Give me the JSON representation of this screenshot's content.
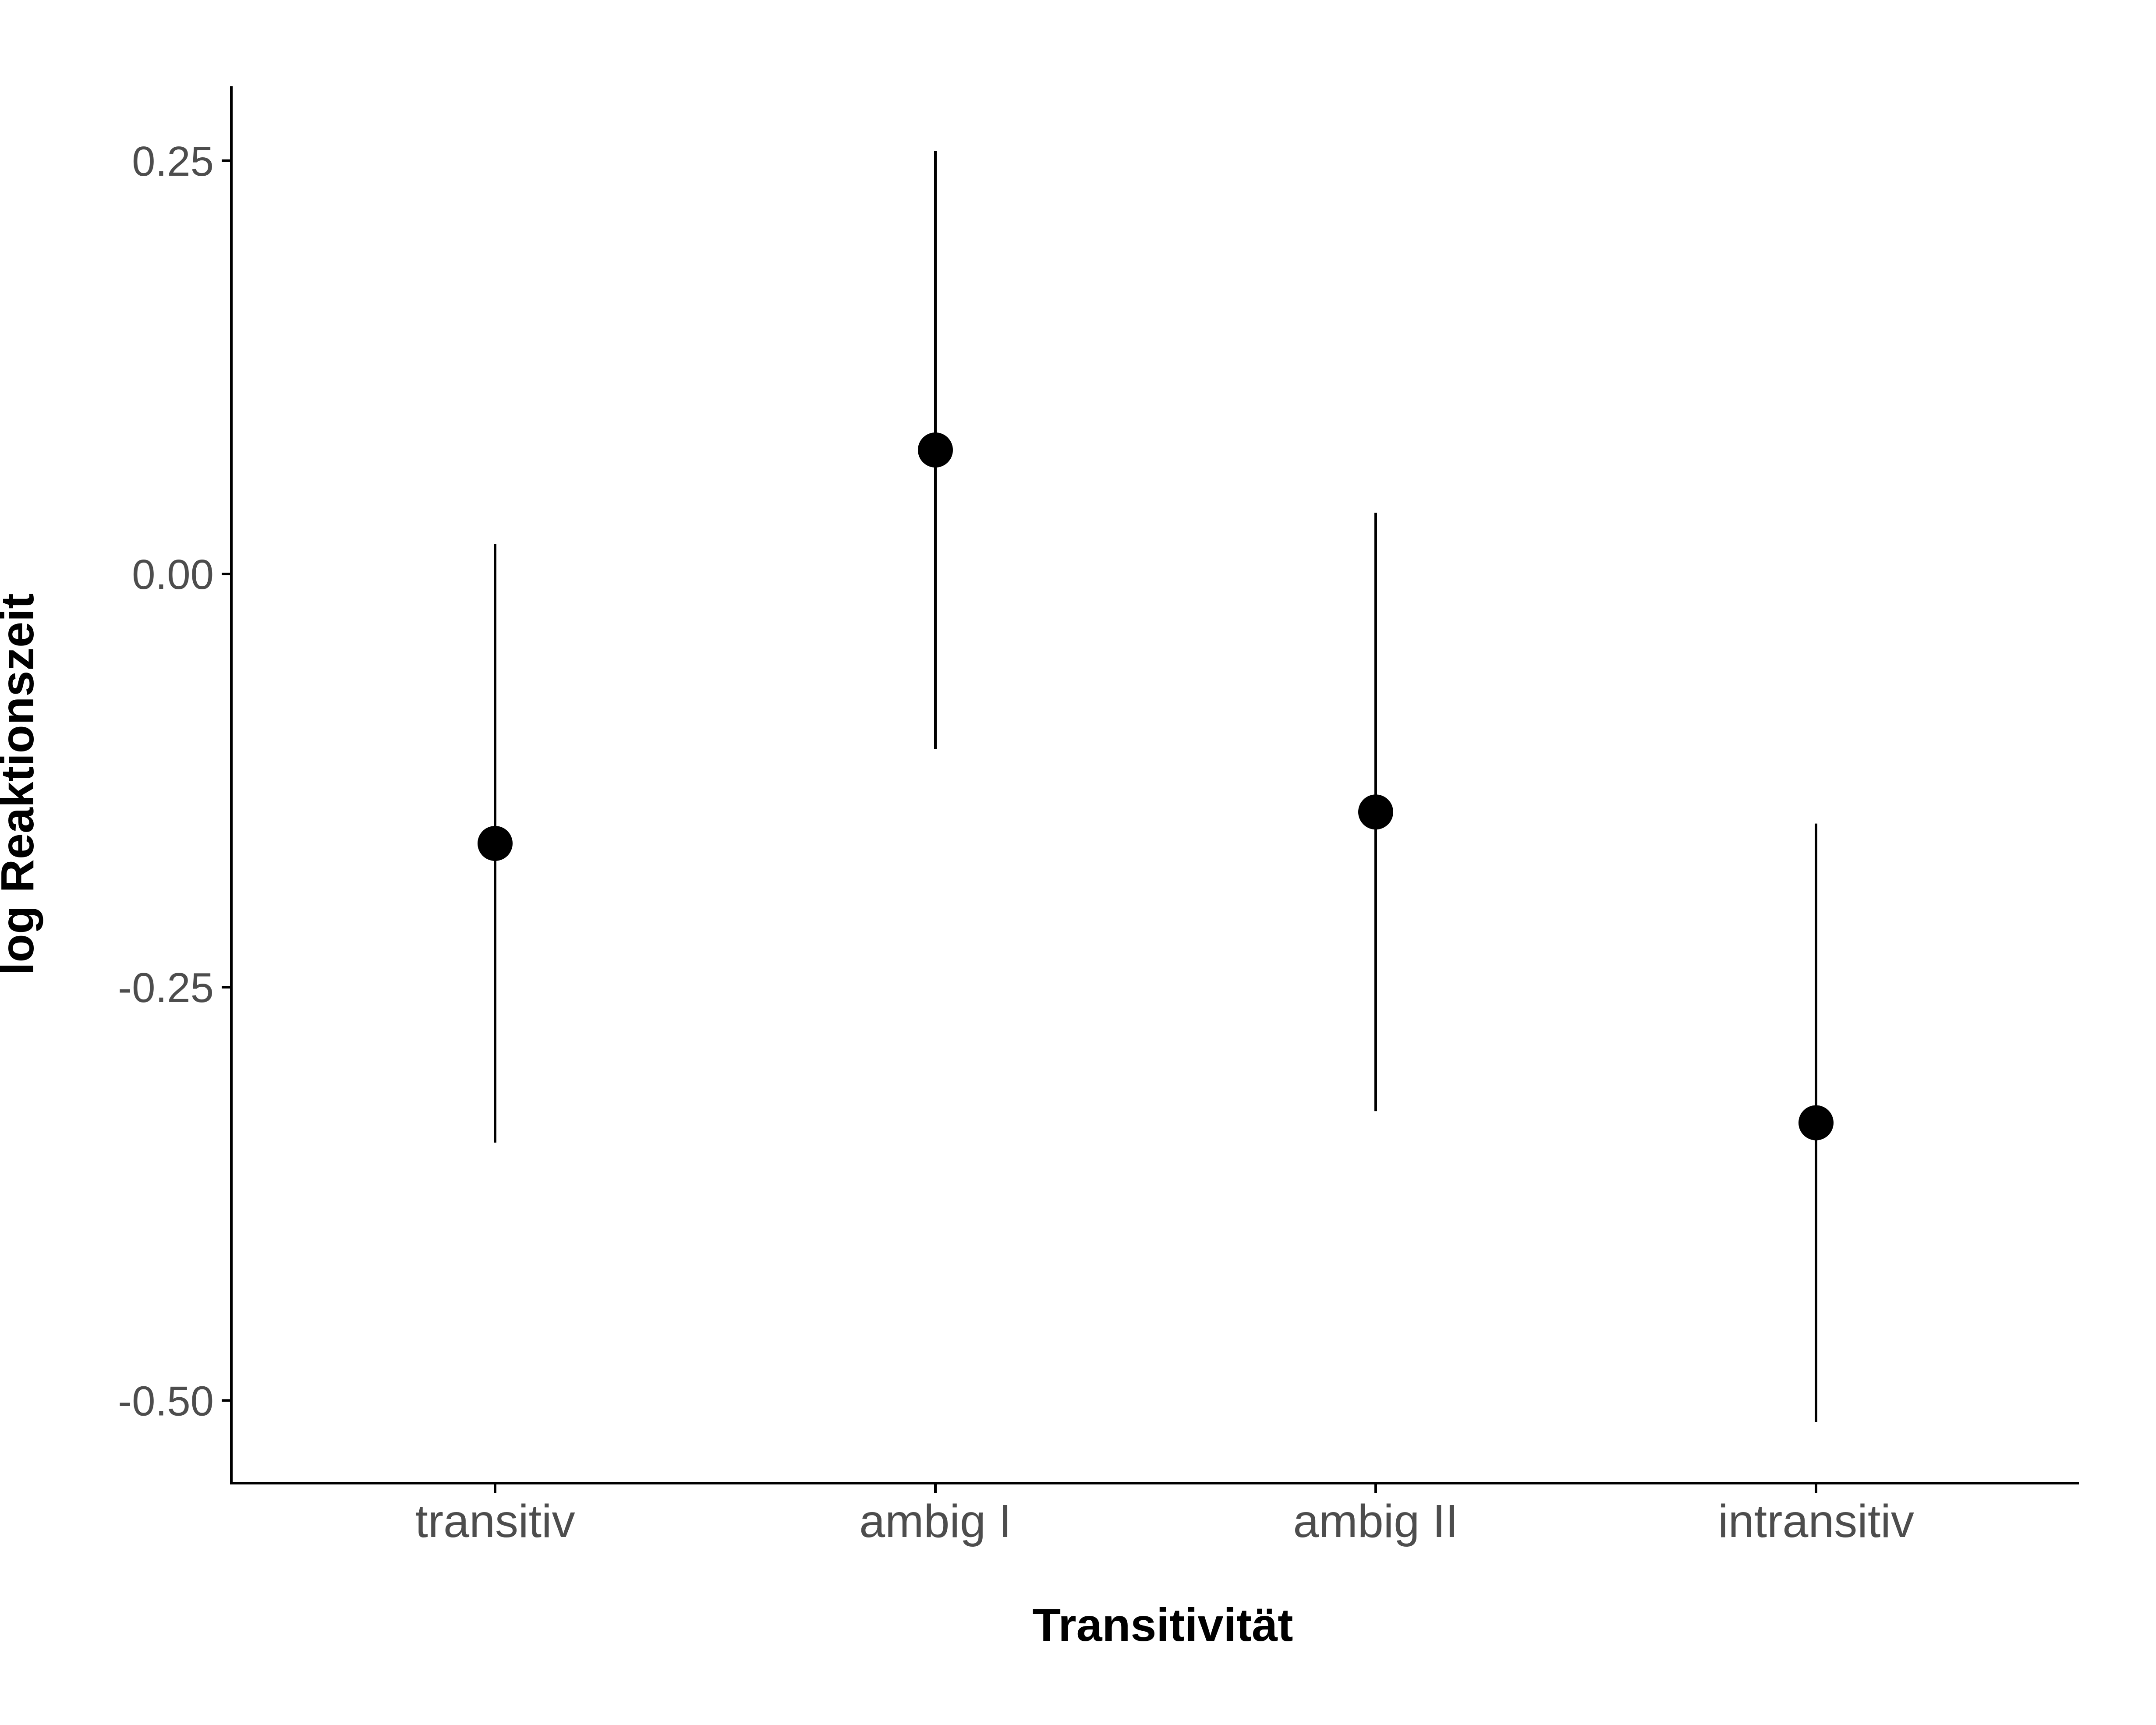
{
  "chart_data": {
    "type": "scatter",
    "title": "",
    "xlabel": "Transitivität",
    "ylabel": "log Reaktionszeit",
    "categories": [
      "transitiv",
      "ambig I",
      "ambig II",
      "intransitiv"
    ],
    "values": [
      -0.163,
      0.075,
      -0.144,
      -0.332
    ],
    "ci_lower": [
      -0.344,
      -0.106,
      -0.325,
      -0.513
    ],
    "ci_upper": [
      0.018,
      0.256,
      0.037,
      -0.151
    ],
    "yticks": [
      "0.25",
      "0.00",
      "-0.25",
      "-0.50"
    ],
    "ylim": [
      -0.55,
      0.295
    ],
    "grid": false,
    "legend": "none",
    "colors": {
      "point": "#000000",
      "errorbar": "#000000",
      "axis": "#000000",
      "tick_text": "#4d4d4d"
    }
  }
}
